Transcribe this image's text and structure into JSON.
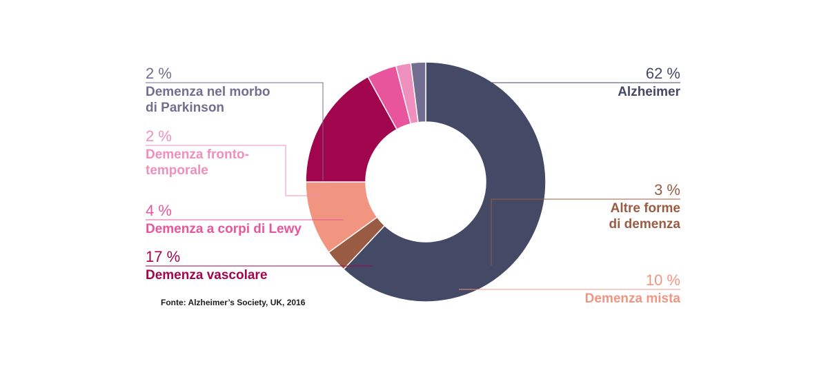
{
  "chart_data": {
    "type": "pie",
    "donut": true,
    "slices": [
      {
        "label": "Alzheimer",
        "value": 62,
        "pct_text": "62 %",
        "color": "#444966"
      },
      {
        "label": "Altre forme di demenza",
        "value": 3,
        "pct_text": "3 %",
        "color": "#9a5b43"
      },
      {
        "label": "Demenza mista",
        "value": 10,
        "pct_text": "10 %",
        "color": "#f29580"
      },
      {
        "label": "Demenza vascolare",
        "value": 17,
        "pct_text": "17 %",
        "color": "#a1054d"
      },
      {
        "label": "Demenza a corpi di Lewy",
        "value": 4,
        "pct_text": "4 %",
        "color": "#e8559c"
      },
      {
        "label": "Demenza fronto-temporale",
        "value": 2,
        "pct_text": "2 %",
        "color": "#ef8fbd"
      },
      {
        "label": "Demenza nel morbo di Parkinson",
        "value": 2,
        "pct_text": "2 %",
        "color": "#726e8f"
      }
    ]
  },
  "labels": {
    "alzheimer": {
      "pct": "62 %",
      "line1": "Alzheimer"
    },
    "altre": {
      "pct": "3 %",
      "line1": "Altre forme",
      "line2": "di demenza"
    },
    "mista": {
      "pct": "10 %",
      "line1": "Demenza mista"
    },
    "vascolare": {
      "pct": "17 %",
      "line1": "Demenza vascolare"
    },
    "lewy": {
      "pct": "4 %",
      "line1": "Demenza a corpi di Lewy"
    },
    "fronto": {
      "pct": "2 %",
      "line1": "Demenza fronto-",
      "line2": "temporale"
    },
    "parkinson": {
      "pct": "2 %",
      "line1": "Demenza nel morbo",
      "line2": "di Parkinson"
    }
  },
  "source": "Fonte: Alzheimer’s Society, UK, 2016"
}
